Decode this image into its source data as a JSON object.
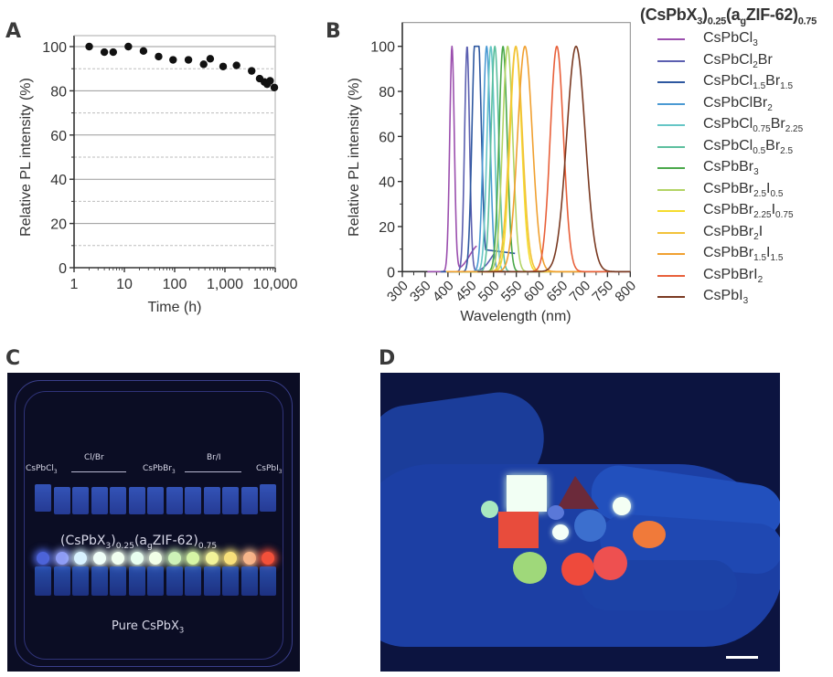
{
  "panels": {
    "a": "A",
    "b": "B",
    "c": "C",
    "d": "D"
  },
  "chart_data": [
    {
      "id": "A",
      "type": "scatter",
      "title": "",
      "xlabel": "Time (h)",
      "ylabel": "Relative PL intensity (%)",
      "xscale": "log",
      "xlim": [
        1,
        10000
      ],
      "ylim": [
        0,
        100
      ],
      "xticks": [
        1,
        10,
        100,
        1000,
        10000
      ],
      "xtick_labels": [
        "1",
        "10",
        "100",
        "1,000",
        "10,000"
      ],
      "yticks": [
        0,
        20,
        40,
        60,
        80,
        100
      ],
      "ytick_labels": [
        "0",
        "20",
        "40",
        "60",
        "80",
        "100"
      ],
      "grid": "horizontal (solid at 20s, dashed at 10s)",
      "x": [
        2,
        4,
        6,
        12,
        24,
        48,
        93,
        188,
        377,
        510,
        920,
        1700,
        3400,
        4900,
        6100,
        6900,
        7900,
        9600
      ],
      "y": [
        100,
        97.5,
        97.5,
        100,
        98,
        95.5,
        94,
        94,
        92,
        94.5,
        91,
        91.5,
        89,
        85.5,
        84,
        83,
        84.5,
        81.5
      ]
    },
    {
      "id": "B",
      "type": "line",
      "title": "",
      "xlabel": "Wavelength (nm)",
      "ylabel": "Relative PL intensity (%)",
      "xlim": [
        300,
        800
      ],
      "ylim": [
        0,
        100
      ],
      "xticks": [
        300,
        350,
        400,
        450,
        500,
        550,
        600,
        650,
        700,
        750,
        800
      ],
      "xtick_labels": [
        "300",
        "350",
        "400",
        "450",
        "500",
        "550",
        "600",
        "650",
        "700",
        "750",
        "800"
      ],
      "yticks": [
        0,
        20,
        40,
        60,
        80,
        100
      ],
      "ytick_labels": [
        "0",
        "20",
        "40",
        "60",
        "80",
        "100"
      ],
      "grid": "none",
      "legend_title": "(CsPbX3)0.25(agZIF-62)0.75",
      "legend_placement": "right",
      "series": [
        {
          "name": "CsPbCl3",
          "parts": [
            [
              "CsPbCl",
              ""
            ],
            [
              "3",
              "sub"
            ]
          ],
          "peak_nm": 409,
          "fwhm_nm": 12,
          "color": "#9b4fae"
        },
        {
          "name": "CsPbCl2Br",
          "parts": [
            [
              "CsPbCl",
              ""
            ],
            [
              "2",
              "sub"
            ],
            [
              "Br",
              ""
            ]
          ],
          "peak_nm": 442,
          "fwhm_nm": 13,
          "color": "#5b5fb0"
        },
        {
          "name": "CsPbCl1.5Br1.5",
          "parts": [
            [
              "CsPbCl",
              ""
            ],
            [
              "1.5",
              "sub"
            ],
            [
              "Br",
              ""
            ],
            [
              "1.5",
              "sub"
            ]
          ],
          "peak_nm": 466,
          "fwhm_nm": 18,
          "color": "#2e58a0"
        },
        {
          "name": "CsPbClBr2",
          "parts": [
            [
              "CsPbClBr",
              ""
            ],
            [
              "2",
              "sub"
            ]
          ],
          "peak_nm": 485,
          "fwhm_nm": 18,
          "color": "#4b9ad3"
        },
        {
          "name": "CsPbCl0.75Br2.25",
          "parts": [
            [
              "CsPbCl",
              ""
            ],
            [
              "0.75",
              "sub"
            ],
            [
              "Br",
              ""
            ],
            [
              "2.25",
              "sub"
            ]
          ],
          "peak_nm": 494,
          "fwhm_nm": 19,
          "color": "#66c6c6"
        },
        {
          "name": "CsPbCl0.5Br2.5",
          "parts": [
            [
              "CsPbCl",
              ""
            ],
            [
              "0.5",
              "sub"
            ],
            [
              "Br",
              ""
            ],
            [
              "2.5",
              "sub"
            ]
          ],
          "peak_nm": 503,
          "fwhm_nm": 20,
          "color": "#5cbf9e"
        },
        {
          "name": "CsPbBr3",
          "parts": [
            [
              "CsPbBr",
              ""
            ],
            [
              "3",
              "sub"
            ]
          ],
          "peak_nm": 521,
          "fwhm_nm": 21,
          "color": "#4aa84a"
        },
        {
          "name": "CsPbBr2.5I0.5",
          "parts": [
            [
              "CsPbBr",
              ""
            ],
            [
              "2.5",
              "sub"
            ],
            [
              "I",
              ""
            ],
            [
              "0.5",
              "sub"
            ]
          ],
          "peak_nm": 531,
          "fwhm_nm": 26,
          "color": "#b3d465"
        },
        {
          "name": "CsPbBr2.25I0.75",
          "parts": [
            [
              "CsPbBr",
              ""
            ],
            [
              "2.25",
              "sub"
            ],
            [
              "I",
              ""
            ],
            [
              "0.75",
              "sub"
            ]
          ],
          "peak_nm": 549,
          "fwhm_nm": 30,
          "color": "#f5dc2e"
        },
        {
          "name": "CsPbBr2I",
          "parts": [
            [
              "CsPbBr",
              ""
            ],
            [
              "2",
              "sub"
            ],
            [
              "I",
              ""
            ]
          ],
          "peak_nm": 549,
          "fwhm_nm": 34,
          "color": "#f2c23a"
        },
        {
          "name": "CsPbBr1.5I1.5",
          "parts": [
            [
              "CsPbBr",
              ""
            ],
            [
              "1.5",
              "sub"
            ],
            [
              "I",
              ""
            ],
            [
              "1.5",
              "sub"
            ]
          ],
          "peak_nm": 569,
          "fwhm_nm": 38,
          "color": "#f0a030"
        },
        {
          "name": "CsPbBrI2",
          "parts": [
            [
              "CsPbBrI",
              ""
            ],
            [
              "2",
              "sub"
            ]
          ],
          "peak_nm": 639,
          "fwhm_nm": 34,
          "color": "#e8603a"
        },
        {
          "name": "CsPbI3",
          "parts": [
            [
              "CsPbI",
              ""
            ],
            [
              "3",
              "sub"
            ]
          ],
          "peak_nm": 681,
          "fwhm_nm": 48,
          "color": "#7a3a22"
        }
      ]
    }
  ],
  "photoC": {
    "labels": {
      "left": "CsPbCl",
      "left_sub": "3",
      "clbr": "Cl/Br",
      "middle": "CsPbBr",
      "middle_sub": "3",
      "bri": "Br/I",
      "right": "CsPbI",
      "right_sub": "3",
      "composite_1": "(CsPbX",
      "composite_sub1": "3",
      "composite_2": ")",
      "composite_sub2": "0.25",
      "composite_3": "(a",
      "composite_sub3": "g",
      "composite_4": "ZIF-62)",
      "composite_sub4": "0.75",
      "pure": "Pure CsPbX",
      "pure_sub": "3"
    },
    "glow_colors": [
      "#4c63d8",
      "#8e9cf5",
      "#d8f2ff",
      "#f0fff8",
      "#f2fff0",
      "#e9fff0",
      "#f2ffe8",
      "#cdf2b8",
      "#d6f5a5",
      "#f2f39a",
      "#f8e07a",
      "#f7b58a",
      "#f2503a"
    ]
  },
  "photoD": {
    "scale_bar": true
  }
}
